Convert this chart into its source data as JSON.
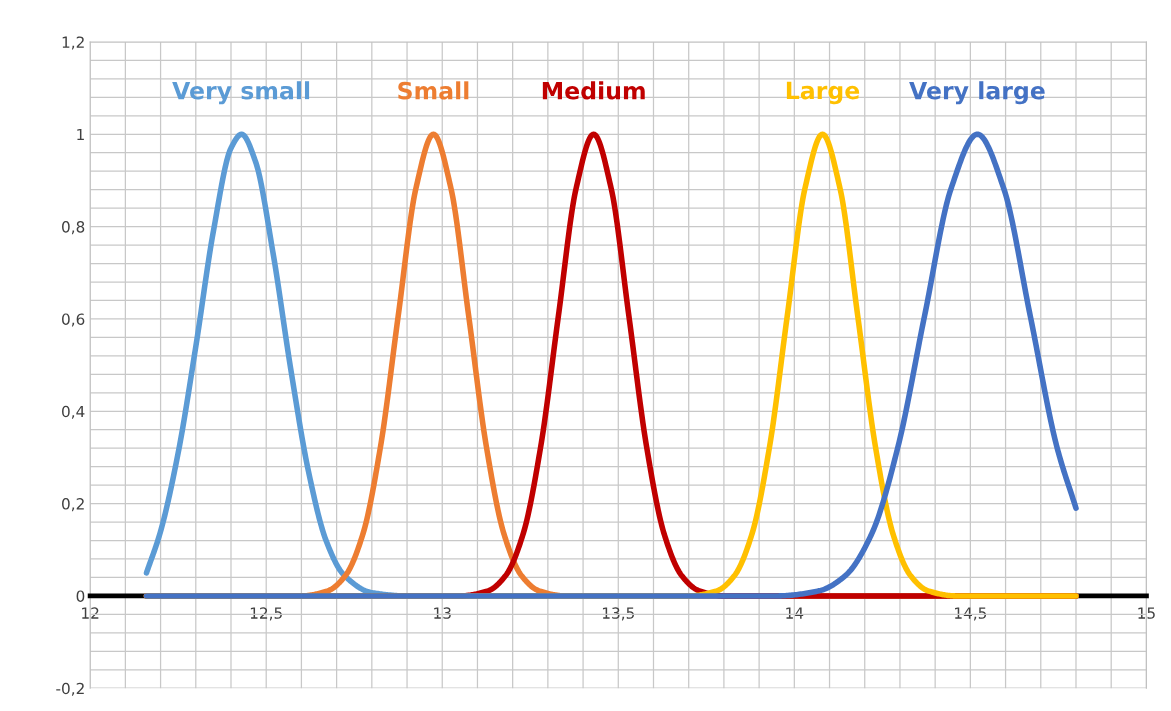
{
  "chart_data": {
    "type": "line",
    "series": [
      {
        "name": "Very small",
        "color": "#5b9bd5",
        "x": [
          12.16,
          12.2,
          12.25,
          12.3,
          12.35,
          12.4,
          12.43,
          12.47,
          12.52,
          12.57,
          12.62,
          12.67,
          12.72,
          12.8,
          12.9,
          14.8
        ],
        "values": [
          0.05,
          0.14,
          0.31,
          0.54,
          0.79,
          0.97,
          1,
          0.94,
          0.74,
          0.49,
          0.27,
          0.12,
          0.046,
          0.007,
          0,
          0
        ]
      },
      {
        "name": "Small",
        "color": "#ed7d31",
        "x": [
          12.16,
          12.6,
          12.675,
          12.725,
          12.775,
          12.825,
          12.875,
          12.925,
          12.975,
          13.025,
          13.075,
          13.125,
          13.175,
          13.225,
          13.275,
          13.35,
          14.8
        ],
        "values": [
          0,
          0,
          0.011,
          0.044,
          0.135,
          0.325,
          0.607,
          0.882,
          1,
          0.882,
          0.607,
          0.325,
          0.135,
          0.044,
          0.011,
          0,
          0
        ]
      },
      {
        "name": "Medium",
        "color": "#c00000",
        "x": [
          12.16,
          13.05,
          13.13,
          13.18,
          13.23,
          13.28,
          13.33,
          13.38,
          13.43,
          13.48,
          13.53,
          13.58,
          13.63,
          13.68,
          13.73,
          13.8,
          14.8
        ],
        "values": [
          0,
          0,
          0.011,
          0.044,
          0.135,
          0.325,
          0.607,
          0.882,
          1,
          0.882,
          0.607,
          0.325,
          0.135,
          0.044,
          0.011,
          0,
          0
        ]
      },
      {
        "name": "Large",
        "color": "#ffc000",
        "x": [
          12.16,
          13.7,
          13.78,
          13.83,
          13.88,
          13.93,
          13.98,
          14.03,
          14.08,
          14.13,
          14.18,
          14.23,
          14.28,
          14.33,
          14.38,
          14.46,
          14.8
        ],
        "values": [
          0,
          0,
          0.011,
          0.044,
          0.135,
          0.325,
          0.607,
          0.882,
          1,
          0.882,
          0.607,
          0.325,
          0.135,
          0.044,
          0.011,
          0,
          0
        ]
      },
      {
        "name": "Very large",
        "color": "#4472c4",
        "x": [
          12.16,
          13.95,
          14.07,
          14.145,
          14.22,
          14.295,
          14.37,
          14.445,
          14.52,
          14.595,
          14.67,
          14.745,
          14.8
        ],
        "values": [
          0,
          0,
          0.011,
          0.044,
          0.135,
          0.325,
          0.607,
          0.882,
          1,
          0.882,
          0.607,
          0.325,
          0.19
        ]
      }
    ],
    "xlim": [
      12,
      15
    ],
    "xticks": [
      12,
      {
        "value": 12.5,
        "label": "12,5"
      },
      13,
      {
        "value": 13.5,
        "label": "13,5"
      },
      14,
      {
        "value": 14.5,
        "label": "14,5"
      },
      15
    ],
    "ylim": [
      -0.2,
      1.2
    ],
    "yticks": [
      {
        "value": -0.2,
        "label": "-0,2"
      },
      0,
      {
        "value": 0.2,
        "label": "0,2"
      },
      {
        "value": 0.4,
        "label": "0,4"
      },
      {
        "value": 0.6,
        "label": "0,6"
      },
      {
        "value": 0.8,
        "label": "0,8"
      },
      1,
      {
        "value": 1.2,
        "label": "1,2"
      }
    ],
    "grid": true,
    "legend": false,
    "marker": "none",
    "line_style": "solid"
  }
}
